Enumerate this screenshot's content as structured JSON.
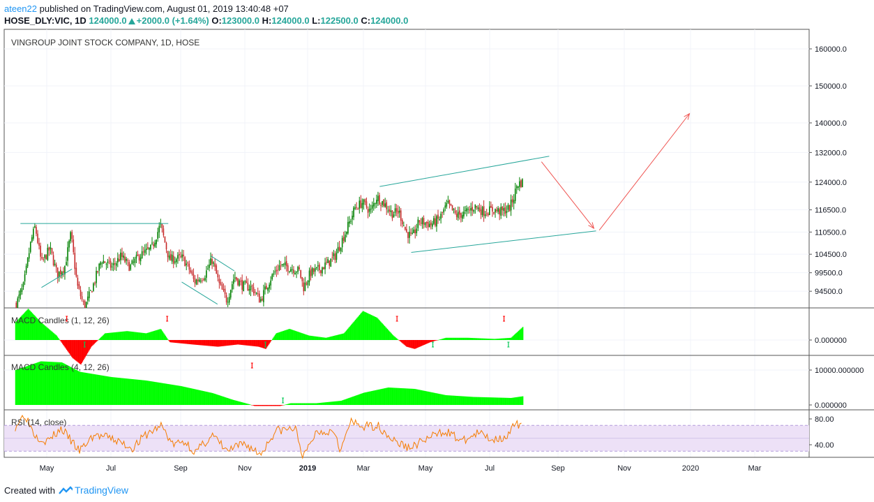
{
  "header": {
    "user": "ateen22",
    "published_text": " published on TradingView.com, August 01, 2019 13:40:48 +07",
    "symbol": "HOSE_DLY:VIC, 1D",
    "last": "124000.0",
    "change": "+2000.0 (+1.64%)",
    "o_label": "O:",
    "o_val": "123000.0",
    "h_label": "H:",
    "h_val": "124000.0",
    "l_label": "L:",
    "l_val": "122500.0",
    "c_label": "C:",
    "c_val": "124000.0"
  },
  "footer": {
    "created_with": "Created with",
    "brand": "TradingView"
  },
  "colors": {
    "up": "#008000",
    "down": "#c62828",
    "macd_pos": "#00ff00",
    "macd_neg": "#ff0000",
    "trend": "#26a69a",
    "arrow": "#ef5350",
    "rsi": "#f57c00",
    "rsi_band": "#ede1f7"
  },
  "chart_data": [
    {
      "type": "candlestick",
      "title": "VINGROUP JOINT STOCK COMPANY, 1D, HOSE",
      "y_ticks": [
        "160000.0",
        "150000.0",
        "140000.0",
        "132000.0",
        "124000.0",
        "116500.0",
        "110500.0",
        "104500.0",
        "99500.0",
        "94500.0"
      ],
      "x_ticks": [
        "May",
        "Jul",
        "Sep",
        "Nov",
        "2019",
        "Mar",
        "May",
        "Jul",
        "Sep",
        "Nov",
        "2020",
        "Mar"
      ],
      "ylim": [
        90000,
        165000
      ],
      "close_path": [
        {
          "x": "2018-04-02",
          "y": 91000
        },
        {
          "x": "2018-04-09",
          "y": 96000
        },
        {
          "x": "2018-04-16",
          "y": 108000
        },
        {
          "x": "2018-04-20",
          "y": 112000
        },
        {
          "x": "2018-04-26",
          "y": 102000
        },
        {
          "x": "2018-05-04",
          "y": 106000
        },
        {
          "x": "2018-05-11",
          "y": 99000
        },
        {
          "x": "2018-05-18",
          "y": 101000
        },
        {
          "x": "2018-05-24",
          "y": 110000
        },
        {
          "x": "2018-05-30",
          "y": 96000
        },
        {
          "x": "2018-06-06",
          "y": 90000
        },
        {
          "x": "2018-06-14",
          "y": 96000
        },
        {
          "x": "2018-06-22",
          "y": 103000
        },
        {
          "x": "2018-07-02",
          "y": 101000
        },
        {
          "x": "2018-07-10",
          "y": 104000
        },
        {
          "x": "2018-07-18",
          "y": 101000
        },
        {
          "x": "2018-07-26",
          "y": 104000
        },
        {
          "x": "2018-08-06",
          "y": 106000
        },
        {
          "x": "2018-08-14",
          "y": 112500
        },
        {
          "x": "2018-08-22",
          "y": 103000
        },
        {
          "x": "2018-09-03",
          "y": 103500
        },
        {
          "x": "2018-09-10",
          "y": 100000
        },
        {
          "x": "2018-09-14",
          "y": 97000
        },
        {
          "x": "2018-09-24",
          "y": 99000
        },
        {
          "x": "2018-10-01",
          "y": 103000
        },
        {
          "x": "2018-10-08",
          "y": 96000
        },
        {
          "x": "2018-10-15",
          "y": 92000
        },
        {
          "x": "2018-10-22",
          "y": 98500
        },
        {
          "x": "2018-10-30",
          "y": 96000
        },
        {
          "x": "2018-11-08",
          "y": 95500
        },
        {
          "x": "2018-11-16",
          "y": 92000
        },
        {
          "x": "2018-11-26",
          "y": 98000
        },
        {
          "x": "2018-12-05",
          "y": 101500
        },
        {
          "x": "2018-12-14",
          "y": 101000
        },
        {
          "x": "2018-12-24",
          "y": 100000
        },
        {
          "x": "2018-12-28",
          "y": 95500
        },
        {
          "x": "2019-01-04",
          "y": 99500
        },
        {
          "x": "2019-01-14",
          "y": 100500
        },
        {
          "x": "2019-01-22",
          "y": 102000
        },
        {
          "x": "2019-01-30",
          "y": 104000
        },
        {
          "x": "2019-02-11",
          "y": 111000
        },
        {
          "x": "2019-02-20",
          "y": 117000
        },
        {
          "x": "2019-02-28",
          "y": 118500
        },
        {
          "x": "2019-03-08",
          "y": 116000
        },
        {
          "x": "2019-03-14",
          "y": 120000
        },
        {
          "x": "2019-03-22",
          "y": 118000
        },
        {
          "x": "2019-03-29",
          "y": 115500
        },
        {
          "x": "2019-04-05",
          "y": 116000
        },
        {
          "x": "2019-04-12",
          "y": 110500
        },
        {
          "x": "2019-04-18",
          "y": 109000
        },
        {
          "x": "2019-04-25",
          "y": 113500
        },
        {
          "x": "2019-05-06",
          "y": 112500
        },
        {
          "x": "2019-05-14",
          "y": 114000
        },
        {
          "x": "2019-05-22",
          "y": 118000
        },
        {
          "x": "2019-05-30",
          "y": 115000
        },
        {
          "x": "2019-06-07",
          "y": 115500
        },
        {
          "x": "2019-06-17",
          "y": 117500
        },
        {
          "x": "2019-06-25",
          "y": 116000
        },
        {
          "x": "2019-07-04",
          "y": 116500
        },
        {
          "x": "2019-07-12",
          "y": 116000
        },
        {
          "x": "2019-07-19",
          "y": 117000
        },
        {
          "x": "2019-07-23",
          "y": 120000
        },
        {
          "x": "2019-07-26",
          "y": 123500
        },
        {
          "x": "2019-07-31",
          "y": 124000
        }
      ],
      "trendlines": [
        {
          "from": {
            "x": "2018-04-06",
            "y": 112800
          },
          "to": {
            "x": "2018-08-21",
            "y": 112800
          }
        },
        {
          "from": {
            "x": "2018-04-26",
            "y": 95500
          },
          "to": {
            "x": "2018-05-25",
            "y": 100500
          }
        },
        {
          "from": {
            "x": "2018-09-02",
            "y": 97000
          },
          "to": {
            "x": "2018-10-06",
            "y": 91000
          }
        },
        {
          "from": {
            "x": "2018-09-30",
            "y": 104000
          },
          "to": {
            "x": "2018-10-22",
            "y": 100000
          }
        },
        {
          "from": {
            "x": "2019-03-17",
            "y": 122800
          },
          "to": {
            "x": "2019-08-24",
            "y": 131000
          }
        },
        {
          "from": {
            "x": "2019-04-17",
            "y": 105000
          },
          "to": {
            "x": "2019-10-06",
            "y": 110800
          }
        }
      ],
      "arrows": [
        {
          "from": {
            "x": "2019-08-17",
            "y": 129500
          },
          "to": {
            "x": "2019-10-04",
            "y": 111500
          }
        },
        {
          "from": {
            "x": "2019-10-09",
            "y": 111000
          },
          "to": {
            "x": "2019-12-31",
            "y": 142500
          }
        }
      ]
    },
    {
      "type": "area",
      "title": "MACD Candles (1, 12, 26)",
      "y_ticks": [
        "0.000000"
      ],
      "signals_sell": [
        "2018-05-20",
        "2018-08-20",
        "2019-04-03",
        "2019-07-14"
      ],
      "signals_buy": [
        "2018-06-06",
        "2018-11-21",
        "2019-05-08",
        "2019-07-18"
      ],
      "values_path": [
        {
          "x": "2018-04-01",
          "y": 8
        },
        {
          "x": "2018-04-13",
          "y": 14
        },
        {
          "x": "2018-04-25",
          "y": 8
        },
        {
          "x": "2018-05-10",
          "y": 2
        },
        {
          "x": "2018-05-25",
          "y": -8
        },
        {
          "x": "2018-06-02",
          "y": -11
        },
        {
          "x": "2018-06-12",
          "y": -3
        },
        {
          "x": "2018-06-25",
          "y": 3
        },
        {
          "x": "2018-07-15",
          "y": 4
        },
        {
          "x": "2018-08-01",
          "y": 3
        },
        {
          "x": "2018-08-14",
          "y": 5
        },
        {
          "x": "2018-08-22",
          "y": -1
        },
        {
          "x": "2018-09-12",
          "y": -2
        },
        {
          "x": "2018-10-06",
          "y": -3
        },
        {
          "x": "2018-10-25",
          "y": -2
        },
        {
          "x": "2018-11-14",
          "y": -3
        },
        {
          "x": "2018-11-21",
          "y": -4
        },
        {
          "x": "2018-12-01",
          "y": 3
        },
        {
          "x": "2018-12-14",
          "y": 5
        },
        {
          "x": "2019-01-02",
          "y": 2
        },
        {
          "x": "2019-01-20",
          "y": 1
        },
        {
          "x": "2019-02-08",
          "y": 3
        },
        {
          "x": "2019-02-28",
          "y": 13
        },
        {
          "x": "2019-03-14",
          "y": 10
        },
        {
          "x": "2019-03-30",
          "y": 2
        },
        {
          "x": "2019-04-12",
          "y": -3
        },
        {
          "x": "2019-04-20",
          "y": -4
        },
        {
          "x": "2019-05-05",
          "y": -1
        },
        {
          "x": "2019-05-20",
          "y": 1
        },
        {
          "x": "2019-06-10",
          "y": 1
        },
        {
          "x": "2019-07-05",
          "y": 0.5
        },
        {
          "x": "2019-07-20",
          "y": 1
        },
        {
          "x": "2019-07-31",
          "y": 6
        }
      ]
    },
    {
      "type": "area",
      "title": "MACD Candles (4, 12, 26)",
      "y_ticks": [
        "10000.000000",
        "0.000000"
      ],
      "signals_sell": [
        "2018-11-08"
      ],
      "signals_buy": [
        "2018-12-08"
      ],
      "values_path": [
        {
          "x": "2018-04-01",
          "y": 10000
        },
        {
          "x": "2018-04-25",
          "y": 12500
        },
        {
          "x": "2018-05-15",
          "y": 12200
        },
        {
          "x": "2018-06-01",
          "y": 9500
        },
        {
          "x": "2018-07-01",
          "y": 8000
        },
        {
          "x": "2018-08-01",
          "y": 7000
        },
        {
          "x": "2018-09-01",
          "y": 5400
        },
        {
          "x": "2018-10-01",
          "y": 3400
        },
        {
          "x": "2018-10-20",
          "y": 1500
        },
        {
          "x": "2018-11-05",
          "y": 200
        },
        {
          "x": "2018-11-10",
          "y": -300
        },
        {
          "x": "2018-12-05",
          "y": -300
        },
        {
          "x": "2018-12-15",
          "y": 500
        },
        {
          "x": "2019-01-10",
          "y": 500
        },
        {
          "x": "2019-02-05",
          "y": 1200
        },
        {
          "x": "2019-03-01",
          "y": 3500
        },
        {
          "x": "2019-03-25",
          "y": 5000
        },
        {
          "x": "2019-04-20",
          "y": 4600
        },
        {
          "x": "2019-05-20",
          "y": 2800
        },
        {
          "x": "2019-06-15",
          "y": 2300
        },
        {
          "x": "2019-07-20",
          "y": 2000
        },
        {
          "x": "2019-07-31",
          "y": 2500
        }
      ]
    },
    {
      "type": "line",
      "title": "RSI (14, close)",
      "y_ticks": [
        "80.00",
        "40.00"
      ],
      "bands": [
        70,
        30
      ],
      "values_path": [
        {
          "x": "2018-04-01",
          "y": 68
        },
        {
          "x": "2018-04-10",
          "y": 88
        },
        {
          "x": "2018-04-20",
          "y": 55
        },
        {
          "x": "2018-05-01",
          "y": 45
        },
        {
          "x": "2018-05-15",
          "y": 65
        },
        {
          "x": "2018-06-01",
          "y": 30
        },
        {
          "x": "2018-06-15",
          "y": 55
        },
        {
          "x": "2018-07-01",
          "y": 50
        },
        {
          "x": "2018-07-20",
          "y": 35
        },
        {
          "x": "2018-08-01",
          "y": 55
        },
        {
          "x": "2018-08-15",
          "y": 70
        },
        {
          "x": "2018-08-25",
          "y": 40
        },
        {
          "x": "2018-09-05",
          "y": 45
        },
        {
          "x": "2018-09-15",
          "y": 28
        },
        {
          "x": "2018-10-01",
          "y": 55
        },
        {
          "x": "2018-10-15",
          "y": 30
        },
        {
          "x": "2018-11-01",
          "y": 42
        },
        {
          "x": "2018-11-16",
          "y": 25
        },
        {
          "x": "2018-12-01",
          "y": 62
        },
        {
          "x": "2018-12-20",
          "y": 65
        },
        {
          "x": "2018-12-28",
          "y": 20
        },
        {
          "x": "2019-01-10",
          "y": 60
        },
        {
          "x": "2019-01-30",
          "y": 62
        },
        {
          "x": "2019-02-05",
          "y": 30
        },
        {
          "x": "2019-02-15",
          "y": 75
        },
        {
          "x": "2019-03-01",
          "y": 68
        },
        {
          "x": "2019-03-15",
          "y": 70
        },
        {
          "x": "2019-04-01",
          "y": 45
        },
        {
          "x": "2019-04-15",
          "y": 35
        },
        {
          "x": "2019-05-01",
          "y": 48
        },
        {
          "x": "2019-05-20",
          "y": 62
        },
        {
          "x": "2019-06-05",
          "y": 45
        },
        {
          "x": "2019-06-20",
          "y": 58
        },
        {
          "x": "2019-07-05",
          "y": 48
        },
        {
          "x": "2019-07-18",
          "y": 55
        },
        {
          "x": "2019-07-24",
          "y": 72
        },
        {
          "x": "2019-07-31",
          "y": 66
        }
      ]
    }
  ]
}
